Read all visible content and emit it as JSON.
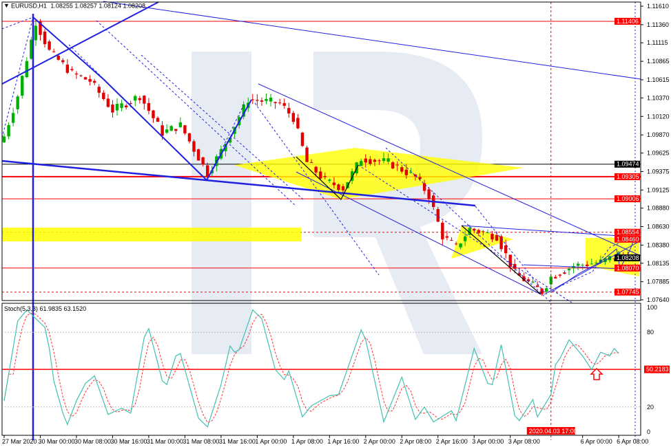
{
  "header": {
    "symbol": "EURUSD,H1",
    "ohlc": "1.08255 1.08257 1.08124 1.08208"
  },
  "indicator": {
    "label": "Stoch(5,3,3) 61.9835 63.1520",
    "level_label": "50.2183",
    "level": 50.2183
  },
  "colors": {
    "bull": "#00b000",
    "bear": "#e00000",
    "stoch_main": "#40c0b0",
    "stoch_signal": "#ff3030",
    "level_red": "#ff0000",
    "trend_blue": "#2020e0",
    "triangle": "#ffff00"
  },
  "chart_data": {
    "type": "candlestick",
    "symbol": "EURUSD",
    "timeframe": "H1",
    "price_ticks": [
      "1.11610",
      "1.11360",
      "1.11115",
      "1.10865",
      "1.10615",
      "1.10370",
      "1.10120",
      "1.09870",
      "1.09625",
      "1.09375",
      "1.09125",
      "1.08880",
      "1.08630",
      "1.08380",
      "1.08135",
      "1.07885",
      "1.07640"
    ],
    "ylim": [
      1.0764,
      1.1161
    ],
    "price_levels": [
      {
        "label": "1.11406",
        "value": 1.11406,
        "color": "#ff0000",
        "style": "solid"
      },
      {
        "label": "1.09474",
        "value": 1.09474,
        "color": "#000000",
        "style": "solid"
      },
      {
        "label": "1.09305",
        "value": 1.09305,
        "color": "#ff0000",
        "style": "thick"
      },
      {
        "label": "1.09006",
        "value": 1.09006,
        "color": "#ff0000",
        "style": "solid"
      },
      {
        "label": "1.08554",
        "value": 1.08554,
        "color": "#ff0000",
        "style": "dashed"
      },
      {
        "label": "1.08460",
        "value": 1.0846,
        "color": "#ff0000",
        "style": "none"
      },
      {
        "label": "1.08208",
        "value": 1.08208,
        "color": "#000000",
        "style": "none"
      },
      {
        "label": "1.08070",
        "value": 1.0807,
        "color": "#ff0000",
        "style": "solid"
      },
      {
        "label": "1.07745",
        "value": 1.07745,
        "color": "#ff0000",
        "style": "dashed"
      }
    ],
    "x_ticks": [
      {
        "label": "27 Mar 2020",
        "t": "27 Mar 16:00"
      },
      {
        "label": "30 Mar 00:00",
        "t": "30 Mar 00:00"
      },
      {
        "label": "30 Mar 08:00",
        "t": "30 Mar 08:00"
      },
      {
        "label": "30 Mar 16:00",
        "t": "30 Mar 16:00"
      },
      {
        "label": "31 Mar 00:00",
        "t": "31 Mar 00:00"
      },
      {
        "label": "31 Mar 08:00",
        "t": "31 Mar 08:00"
      },
      {
        "label": "31 Mar 16:00",
        "t": "31 Mar 16:00"
      },
      {
        "label": "1 Apr 00:00",
        "t": "1 Apr 00:00"
      },
      {
        "label": "1 Apr 08:00",
        "t": "1 Apr 08:00"
      },
      {
        "label": "1 Apr 16:00",
        "t": "1 Apr 16:00"
      },
      {
        "label": "2 Apr 00:00",
        "t": "2 Apr 00:00"
      },
      {
        "label": "2 Apr 08:00",
        "t": "2 Apr 08:00"
      },
      {
        "label": "2 Apr 16:00",
        "t": "2 Apr 16:00"
      },
      {
        "label": "3 Apr 00:00",
        "t": "3 Apr 00:00"
      },
      {
        "label": "3 Apr 08:00",
        "t": "3 Apr 08:00"
      },
      {
        "label": "6 Apr 00:00",
        "t": "6 Apr 00:00"
      },
      {
        "label": "6 Apr 08:00",
        "t": "6 Apr 08:00"
      }
    ],
    "cursor_time": {
      "label": "2020.04.03 17:00",
      "t": "3 Apr 17:00"
    },
    "close_path": [
      {
        "t": "27 Mar 16:00",
        "p": 1.0985
      },
      {
        "t": "27 Mar 19:00",
        "p": 1.104
      },
      {
        "t": "27 Mar 23:00",
        "p": 1.114
      },
      {
        "t": "30 Mar 02:00",
        "p": 1.11
      },
      {
        "t": "30 Mar 07:00",
        "p": 1.107
      },
      {
        "t": "30 Mar 11:00",
        "p": 1.106
      },
      {
        "t": "30 Mar 16:00",
        "p": 1.102
      },
      {
        "t": "30 Mar 22:00",
        "p": 1.104
      },
      {
        "t": "31 Mar 03:00",
        "p": 1.099
      },
      {
        "t": "31 Mar 07:00",
        "p": 1.1
      },
      {
        "t": "31 Mar 13:00",
        "p": 1.0935
      },
      {
        "t": "31 Mar 16:00",
        "p": 1.0965
      },
      {
        "t": "31 Mar 22:00",
        "p": 1.1035
      },
      {
        "t": "1 Apr 05:00",
        "p": 1.103
      },
      {
        "t": "1 Apr 08:00",
        "p": 1.101
      },
      {
        "t": "1 Apr 11:00",
        "p": 1.095
      },
      {
        "t": "1 Apr 15:00",
        "p": 1.0925
      },
      {
        "t": "1 Apr 19:00",
        "p": 1.0915
      },
      {
        "t": "1 Apr 23:00",
        "p": 1.0955
      },
      {
        "t": "2 Apr 05:00",
        "p": 1.095
      },
      {
        "t": "2 Apr 11:00",
        "p": 1.093
      },
      {
        "t": "2 Apr 14:00",
        "p": 1.0905
      },
      {
        "t": "2 Apr 17:00",
        "p": 1.085
      },
      {
        "t": "2 Apr 20:00",
        "p": 1.0835
      },
      {
        "t": "2 Apr 23:00",
        "p": 1.086
      },
      {
        "t": "3 Apr 05:00",
        "p": 1.085
      },
      {
        "t": "3 Apr 09:00",
        "p": 1.08
      },
      {
        "t": "3 Apr 15:00",
        "p": 1.0775
      },
      {
        "t": "3 Apr 17:00",
        "p": 1.0795
      },
      {
        "t": "3 Apr 22:00",
        "p": 1.081
      },
      {
        "t": "6 Apr 04:00",
        "p": 1.0815
      },
      {
        "t": "6 Apr 08:00",
        "p": 1.0825
      },
      {
        "t": "6 Apr 10:00",
        "p": 1.08208
      }
    ],
    "stoch_ticks": [
      "100",
      "80",
      "20",
      "0"
    ],
    "stoch_levels": [
      80,
      20
    ],
    "stoch_k": [
      {
        "t": "27 Mar 16:00",
        "v": 25
      },
      {
        "t": "27 Mar 19:00",
        "v": 89
      },
      {
        "t": "27 Mar 21:00",
        "v": 98
      },
      {
        "t": "30 Mar 01:00",
        "v": 84
      },
      {
        "t": "30 Mar 02:00",
        "v": 67
      },
      {
        "t": "30 Mar 03:00",
        "v": 41
      },
      {
        "t": "30 Mar 05:00",
        "v": 15
      },
      {
        "t": "30 Mar 06:00",
        "v": 6
      },
      {
        "t": "30 Mar 08:00",
        "v": 25
      },
      {
        "t": "30 Mar 10:00",
        "v": 39
      },
      {
        "t": "30 Mar 12:00",
        "v": 45
      },
      {
        "t": "30 Mar 15:00",
        "v": 14
      },
      {
        "t": "30 Mar 18:00",
        "v": 19
      },
      {
        "t": "30 Mar 20:00",
        "v": 15
      },
      {
        "t": "30 Mar 23:00",
        "v": 76
      },
      {
        "t": "31 Mar 00:00",
        "v": 83
      },
      {
        "t": "31 Mar 03:00",
        "v": 41
      },
      {
        "t": "31 Mar 04:00",
        "v": 38
      },
      {
        "t": "31 Mar 06:00",
        "v": 61
      },
      {
        "t": "31 Mar 07:00",
        "v": 63
      },
      {
        "t": "31 Mar 11:00",
        "v": 11
      },
      {
        "t": "31 Mar 13:00",
        "v": 4
      },
      {
        "t": "31 Mar 16:00",
        "v": 38
      },
      {
        "t": "31 Mar 18:00",
        "v": 69
      },
      {
        "t": "31 Mar 19:00",
        "v": 64
      },
      {
        "t": "31 Mar 20:00",
        "v": 66
      },
      {
        "t": "31 Mar 23:00",
        "v": 98
      },
      {
        "t": "1 Apr 01:00",
        "v": 91
      },
      {
        "t": "1 Apr 04:00",
        "v": 50
      },
      {
        "t": "1 Apr 06:00",
        "v": 42
      },
      {
        "t": "1 Apr 07:00",
        "v": 49
      },
      {
        "t": "1 Apr 10:00",
        "v": 12
      },
      {
        "t": "1 Apr 12:00",
        "v": 21
      },
      {
        "t": "1 Apr 16:00",
        "v": 29
      },
      {
        "t": "1 Apr 18:00",
        "v": 30
      },
      {
        "t": "1 Apr 23:00",
        "v": 82
      },
      {
        "t": "2 Apr 00:00",
        "v": 74
      },
      {
        "t": "2 Apr 04:00",
        "v": 8
      },
      {
        "t": "2 Apr 08:00",
        "v": 44
      },
      {
        "t": "2 Apr 11:00",
        "v": 10
      },
      {
        "t": "2 Apr 13:00",
        "v": 20
      },
      {
        "t": "2 Apr 15:00",
        "v": 8
      },
      {
        "t": "2 Apr 19:00",
        "v": 17
      },
      {
        "t": "2 Apr 20:00",
        "v": 9
      },
      {
        "t": "3 Apr 00:00",
        "v": 67
      },
      {
        "t": "3 Apr 03:00",
        "v": 39
      },
      {
        "t": "3 Apr 04:00",
        "v": 38
      },
      {
        "t": "3 Apr 06:00",
        "v": 70
      },
      {
        "t": "3 Apr 09:00",
        "v": 13
      },
      {
        "t": "3 Apr 10:00",
        "v": 9
      },
      {
        "t": "3 Apr 13:00",
        "v": 26
      },
      {
        "t": "3 Apr 14:00",
        "v": 12
      },
      {
        "t": "3 Apr 17:00",
        "v": 30
      },
      {
        "t": "3 Apr 18:00",
        "v": 54
      },
      {
        "t": "3 Apr 19:00",
        "v": 59
      },
      {
        "t": "3 Apr 21:00",
        "v": 74
      },
      {
        "t": "6 Apr 00:00",
        "v": 61
      },
      {
        "t": "6 Apr 02:00",
        "v": 50
      },
      {
        "t": "6 Apr 04:00",
        "v": 64
      },
      {
        "t": "6 Apr 06:00",
        "v": 61
      },
      {
        "t": "6 Apr 07:00",
        "v": 67
      },
      {
        "t": "6 Apr 08:00",
        "v": 63
      }
    ]
  }
}
